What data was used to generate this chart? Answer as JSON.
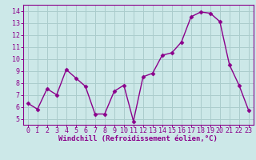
{
  "x": [
    0,
    1,
    2,
    3,
    4,
    5,
    6,
    7,
    8,
    9,
    10,
    11,
    12,
    13,
    14,
    15,
    16,
    17,
    18,
    19,
    20,
    21,
    22,
    23
  ],
  "y": [
    6.3,
    5.8,
    7.5,
    7.0,
    9.1,
    8.4,
    7.7,
    5.4,
    5.4,
    7.3,
    7.8,
    4.8,
    8.5,
    8.8,
    10.3,
    10.5,
    11.4,
    13.5,
    13.9,
    13.8,
    13.1,
    9.5,
    7.8,
    5.7
  ],
  "line_color": "#8b008b",
  "marker": "D",
  "marker_size": 2.5,
  "background_color": "#cce8e8",
  "grid_color": "#aacccc",
  "xlabel": "Windchill (Refroidissement éolien,°C)",
  "ylim": [
    4.5,
    14.5
  ],
  "xlim": [
    -0.5,
    23.5
  ],
  "yticks": [
    5,
    6,
    7,
    8,
    9,
    10,
    11,
    12,
    13,
    14
  ],
  "xticks": [
    0,
    1,
    2,
    3,
    4,
    5,
    6,
    7,
    8,
    9,
    10,
    11,
    12,
    13,
    14,
    15,
    16,
    17,
    18,
    19,
    20,
    21,
    22,
    23
  ],
  "tick_color": "#8b008b",
  "axis_color": "#8b008b",
  "label_fontsize": 6.5,
  "tick_fontsize": 6,
  "line_width": 1.0
}
